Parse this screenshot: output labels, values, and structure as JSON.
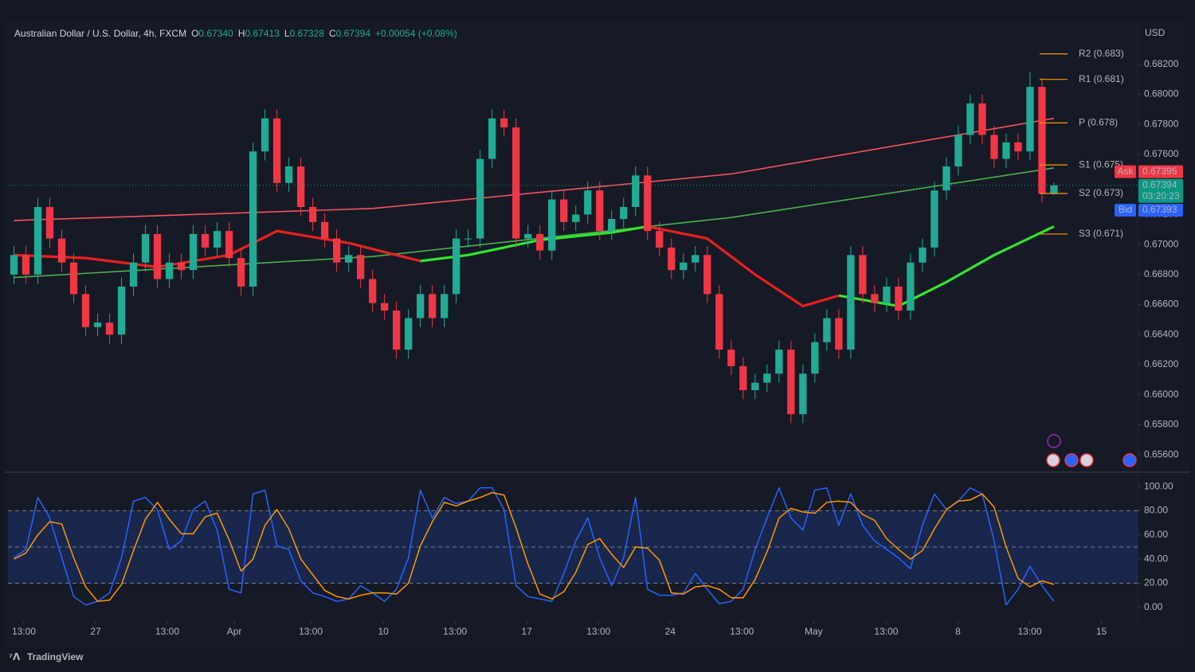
{
  "chart_data": [
    {
      "type": "candlestick",
      "title": "Australian Dollar / U.S. Dollar, 4h, FXCM",
      "ohlc_labels": [
        "O",
        "H",
        "L",
        "C"
      ],
      "ohlc": [
        0.6734,
        0.67413,
        0.67328,
        0.67394
      ],
      "ohlc_value_labels": [
        "0.67340",
        "0.67413",
        "0.67328",
        "0.67394"
      ],
      "change": "+0.00054 (+0.08%)",
      "ylabel": "USD",
      "up_color": "#22ab94",
      "down_color": "#f23645",
      "xlim": [
        -0.5,
        94
      ],
      "ylim": [
        0.655,
        0.6848
      ],
      "yticks": [
        {
          "value": 0.656,
          "label": "0.65600"
        },
        {
          "value": 0.658,
          "label": "0.65800"
        },
        {
          "value": 0.66,
          "label": "0.66000"
        },
        {
          "value": 0.662,
          "label": "0.66200"
        },
        {
          "value": 0.664,
          "label": "0.66400"
        },
        {
          "value": 0.666,
          "label": "0.66600"
        },
        {
          "value": 0.668,
          "label": "0.66800"
        },
        {
          "value": 0.67,
          "label": "0.67000"
        },
        {
          "value": 0.672,
          "label": "0.67200"
        },
        {
          "value": 0.674,
          "label": "0.67400"
        },
        {
          "value": 0.676,
          "label": "0.67600"
        },
        {
          "value": 0.678,
          "label": "0.67800"
        },
        {
          "value": 0.68,
          "label": "0.68000"
        },
        {
          "value": 0.682,
          "label": "0.68200"
        }
      ],
      "open": [
        0.668,
        0.6693,
        0.668,
        0.6725,
        0.6704,
        0.6688,
        0.6667,
        0.6645,
        0.6648,
        0.664,
        0.6672,
        0.6688,
        0.6707,
        0.6677,
        0.6688,
        0.6683,
        0.6707,
        0.6698,
        0.6709,
        0.6691,
        0.6672,
        0.6762,
        0.6784,
        0.6741,
        0.6752,
        0.6725,
        0.6715,
        0.6704,
        0.6688,
        0.6693,
        0.6677,
        0.6661,
        0.6656,
        0.663,
        0.6651,
        0.6667,
        0.6651,
        0.6667,
        0.6704,
        0.6704,
        0.6757,
        0.6784,
        0.6778,
        0.6704,
        0.6707,
        0.6696,
        0.673,
        0.6715,
        0.672,
        0.6736,
        0.6709,
        0.6717,
        0.6725,
        0.6746,
        0.6709,
        0.6698,
        0.6683,
        0.6688,
        0.6693,
        0.6667,
        0.663,
        0.6619,
        0.6603,
        0.6608,
        0.6614,
        0.663,
        0.6587,
        0.6614,
        0.6635,
        0.6651,
        0.663,
        0.6693,
        0.6667,
        0.6661,
        0.6672,
        0.6656,
        0.6688,
        0.6698,
        0.6736,
        0.6752,
        0.6773,
        0.6794,
        0.6773,
        0.6757,
        0.6768,
        0.6762,
        0.6805,
        0.6734
      ],
      "high": [
        0.6699,
        0.6699,
        0.6731,
        0.6731,
        0.671,
        0.6694,
        0.6673,
        0.6654,
        0.6654,
        0.6678,
        0.6694,
        0.6713,
        0.6713,
        0.6694,
        0.6694,
        0.6713,
        0.6713,
        0.6715,
        0.6715,
        0.6697,
        0.6768,
        0.679,
        0.679,
        0.6758,
        0.6758,
        0.6731,
        0.6721,
        0.671,
        0.6699,
        0.6699,
        0.6683,
        0.6667,
        0.6662,
        0.6657,
        0.6673,
        0.6673,
        0.6673,
        0.671,
        0.671,
        0.6763,
        0.679,
        0.679,
        0.6784,
        0.6713,
        0.6713,
        0.6736,
        0.6736,
        0.6726,
        0.6742,
        0.6742,
        0.6723,
        0.6731,
        0.6752,
        0.6752,
        0.6715,
        0.6704,
        0.6694,
        0.6699,
        0.6699,
        0.6673,
        0.6636,
        0.6625,
        0.6614,
        0.662,
        0.6636,
        0.6636,
        0.662,
        0.6641,
        0.6657,
        0.6657,
        0.6699,
        0.6699,
        0.6673,
        0.6678,
        0.6678,
        0.6694,
        0.6704,
        0.6742,
        0.6758,
        0.6779,
        0.68,
        0.68,
        0.6779,
        0.6774,
        0.6774,
        0.6815,
        0.6811,
        0.67413
      ],
      "low": [
        0.6674,
        0.6674,
        0.6674,
        0.6698,
        0.6682,
        0.6661,
        0.6639,
        0.6639,
        0.6634,
        0.6634,
        0.6666,
        0.6682,
        0.6671,
        0.6671,
        0.6677,
        0.6677,
        0.6692,
        0.6692,
        0.6685,
        0.6666,
        0.6666,
        0.6756,
        0.6735,
        0.6735,
        0.6719,
        0.6709,
        0.6698,
        0.6682,
        0.6682,
        0.6671,
        0.6655,
        0.665,
        0.6624,
        0.6624,
        0.6645,
        0.6645,
        0.6645,
        0.6661,
        0.6698,
        0.6698,
        0.6751,
        0.6772,
        0.6698,
        0.6698,
        0.669,
        0.669,
        0.6709,
        0.6709,
        0.6714,
        0.6703,
        0.6703,
        0.6711,
        0.6719,
        0.6703,
        0.6692,
        0.6677,
        0.6677,
        0.6682,
        0.6661,
        0.6624,
        0.6613,
        0.6597,
        0.6597,
        0.6602,
        0.6608,
        0.6581,
        0.6581,
        0.6608,
        0.6629,
        0.6624,
        0.6624,
        0.6661,
        0.6655,
        0.6655,
        0.665,
        0.665,
        0.6682,
        0.6692,
        0.673,
        0.6746,
        0.6767,
        0.6767,
        0.6751,
        0.6751,
        0.6756,
        0.6756,
        0.6728,
        0.67328
      ],
      "close": [
        0.6693,
        0.668,
        0.6725,
        0.6704,
        0.6688,
        0.6667,
        0.6645,
        0.6648,
        0.664,
        0.6672,
        0.6688,
        0.6707,
        0.6677,
        0.6688,
        0.6683,
        0.6707,
        0.6698,
        0.6709,
        0.6691,
        0.6672,
        0.6762,
        0.6784,
        0.6741,
        0.6752,
        0.6725,
        0.6715,
        0.6704,
        0.6688,
        0.6693,
        0.6677,
        0.6661,
        0.6656,
        0.663,
        0.6651,
        0.6667,
        0.6651,
        0.6667,
        0.6704,
        0.6704,
        0.6757,
        0.6784,
        0.6778,
        0.6704,
        0.6707,
        0.6696,
        0.673,
        0.6715,
        0.672,
        0.6736,
        0.6709,
        0.6717,
        0.6725,
        0.6746,
        0.6709,
        0.6698,
        0.6683,
        0.6688,
        0.6693,
        0.6667,
        0.663,
        0.6619,
        0.6603,
        0.6608,
        0.6614,
        0.663,
        0.6587,
        0.6614,
        0.6635,
        0.6651,
        0.663,
        0.6693,
        0.6667,
        0.6661,
        0.6672,
        0.6656,
        0.6688,
        0.6698,
        0.6736,
        0.6752,
        0.6773,
        0.6794,
        0.6773,
        0.6757,
        0.6768,
        0.6762,
        0.6805,
        0.6734,
        0.67394
      ],
      "lines": [
        {
          "color": "#f7525f",
          "x": [
            0,
            30,
            60,
            87
          ],
          "values": [
            0.6716,
            0.6724,
            0.6747,
            0.6784
          ]
        },
        {
          "color": "#4caf50",
          "x": [
            0,
            30,
            60,
            87
          ],
          "values": [
            0.6678,
            0.6692,
            0.6718,
            0.6751
          ]
        },
        {
          "color": "#e8201f",
          "x": [
            0,
            6,
            12,
            18,
            22,
            28,
            34
          ],
          "values": [
            0.6693,
            0.6691,
            0.6685,
            0.6693,
            0.6709,
            0.6701,
            0.6689
          ]
        },
        {
          "color": "#2ee62e",
          "x": [
            34,
            38,
            44,
            50,
            53
          ],
          "values": [
            0.6689,
            0.6693,
            0.6703,
            0.6708,
            0.6712
          ]
        },
        {
          "color": "#e8201f",
          "x": [
            53,
            58,
            62,
            66,
            69
          ],
          "values": [
            0.6712,
            0.6704,
            0.668,
            0.6659,
            0.6666
          ]
        },
        {
          "color": "#2ee62e",
          "x": [
            69,
            74,
            78,
            82,
            87
          ],
          "values": [
            0.6666,
            0.6659,
            0.6675,
            0.6693,
            0.6712
          ]
        }
      ],
      "pivot_color": "#ff9800",
      "pivots": [
        {
          "label": "R2 (0.683)",
          "value": 0.6827
        },
        {
          "label": "R1 (0.681)",
          "value": 0.681
        },
        {
          "label": "P (0.678)",
          "value": 0.6781
        },
        {
          "label": "S1 (0.675)",
          "value": 0.6753
        },
        {
          "label": "S2 (0.673)",
          "value": 0.6734
        },
        {
          "label": "S3 (0.671)",
          "value": 0.6707
        }
      ],
      "price_tags": [
        {
          "name": "Ask",
          "value": 0.67395,
          "value_label": "0.67395",
          "color": "#f23645"
        },
        {
          "value": 0.67394,
          "value_label": "0.67394",
          "countdown": "03:20:23",
          "color": "#089981"
        },
        {
          "name": "Bid",
          "value": 0.67393,
          "value_label": "0.67393",
          "color": "#2962ff"
        }
      ]
    },
    {
      "type": "line",
      "xlim": [
        -0.5,
        94
      ],
      "ylim": [
        -10,
        110
      ],
      "yticks": [
        {
          "value": 0,
          "label": "0.00"
        },
        {
          "value": 20,
          "label": "20.00"
        },
        {
          "value": 40,
          "label": "40.00"
        },
        {
          "value": 60,
          "label": "60.00"
        },
        {
          "value": 80,
          "label": "80.00"
        },
        {
          "value": 100,
          "label": "100.00"
        }
      ],
      "xticks": [
        {
          "value": 0.83,
          "label": "13:00"
        },
        {
          "value": 6.83,
          "label": "27"
        },
        {
          "value": 12.83,
          "label": "13:00"
        },
        {
          "value": 18.43,
          "label": "Apr"
        },
        {
          "value": 24.83,
          "label": "13:00"
        },
        {
          "value": 30.9,
          "label": "10"
        },
        {
          "value": 36.9,
          "label": "13:00"
        },
        {
          "value": 42.9,
          "label": "17"
        },
        {
          "value": 48.9,
          "label": "13:00"
        },
        {
          "value": 54.9,
          "label": "24"
        },
        {
          "value": 60.9,
          "label": "13:00"
        },
        {
          "value": 66.9,
          "label": "May"
        },
        {
          "value": 72.97,
          "label": "13:00"
        },
        {
          "value": 78.97,
          "label": "8"
        },
        {
          "value": 84.97,
          "label": "13:00"
        },
        {
          "value": 90.97,
          "label": "15"
        }
      ],
      "band": [
        20,
        80
      ],
      "band_color": "#2962ff",
      "guide_lines": [
        20,
        50,
        80
      ],
      "series": [
        {
          "color": "#2962ff",
          "values": [
            41,
            48,
            91,
            74,
            41,
            9,
            2,
            5,
            12,
            41,
            88,
            91,
            81,
            48,
            55,
            81,
            88,
            64,
            15,
            12,
            94,
            97,
            51,
            48,
            22,
            12,
            9,
            5,
            7,
            18,
            12,
            5,
            15,
            41,
            97,
            74,
            91,
            86,
            88,
            99,
            99,
            81,
            18,
            9,
            7,
            5,
            28,
            55,
            74,
            41,
            18,
            41,
            91,
            15,
            10,
            10,
            12,
            28,
            15,
            3,
            5,
            15,
            48,
            74,
            99,
            74,
            64,
            97,
            99,
            68,
            94,
            68,
            55,
            48,
            41,
            32,
            68,
            94,
            81,
            88,
            99,
            94,
            55,
            2,
            15,
            34,
            18,
            5
          ]
        },
        {
          "color": "#ff9800",
          "values": [
            40,
            45,
            60,
            71,
            69,
            41,
            17,
            5,
            6,
            19,
            47,
            73,
            87,
            73,
            61,
            61,
            75,
            78,
            56,
            30,
            40,
            68,
            81,
            65,
            40,
            27,
            14,
            9,
            7,
            10,
            12,
            12,
            11,
            20,
            51,
            71,
            87,
            84,
            88,
            91,
            95,
            93,
            66,
            36,
            11,
            7,
            13,
            29,
            52,
            57,
            44,
            33,
            50,
            49,
            39,
            12,
            11,
            17,
            18,
            15,
            8,
            8,
            23,
            46,
            74,
            82,
            79,
            78,
            87,
            88,
            87,
            77,
            72,
            57,
            48,
            40,
            47,
            65,
            81,
            88,
            89,
            94,
            83,
            50,
            24,
            17,
            22,
            19
          ]
        }
      ]
    }
  ],
  "brand": "TradingView"
}
